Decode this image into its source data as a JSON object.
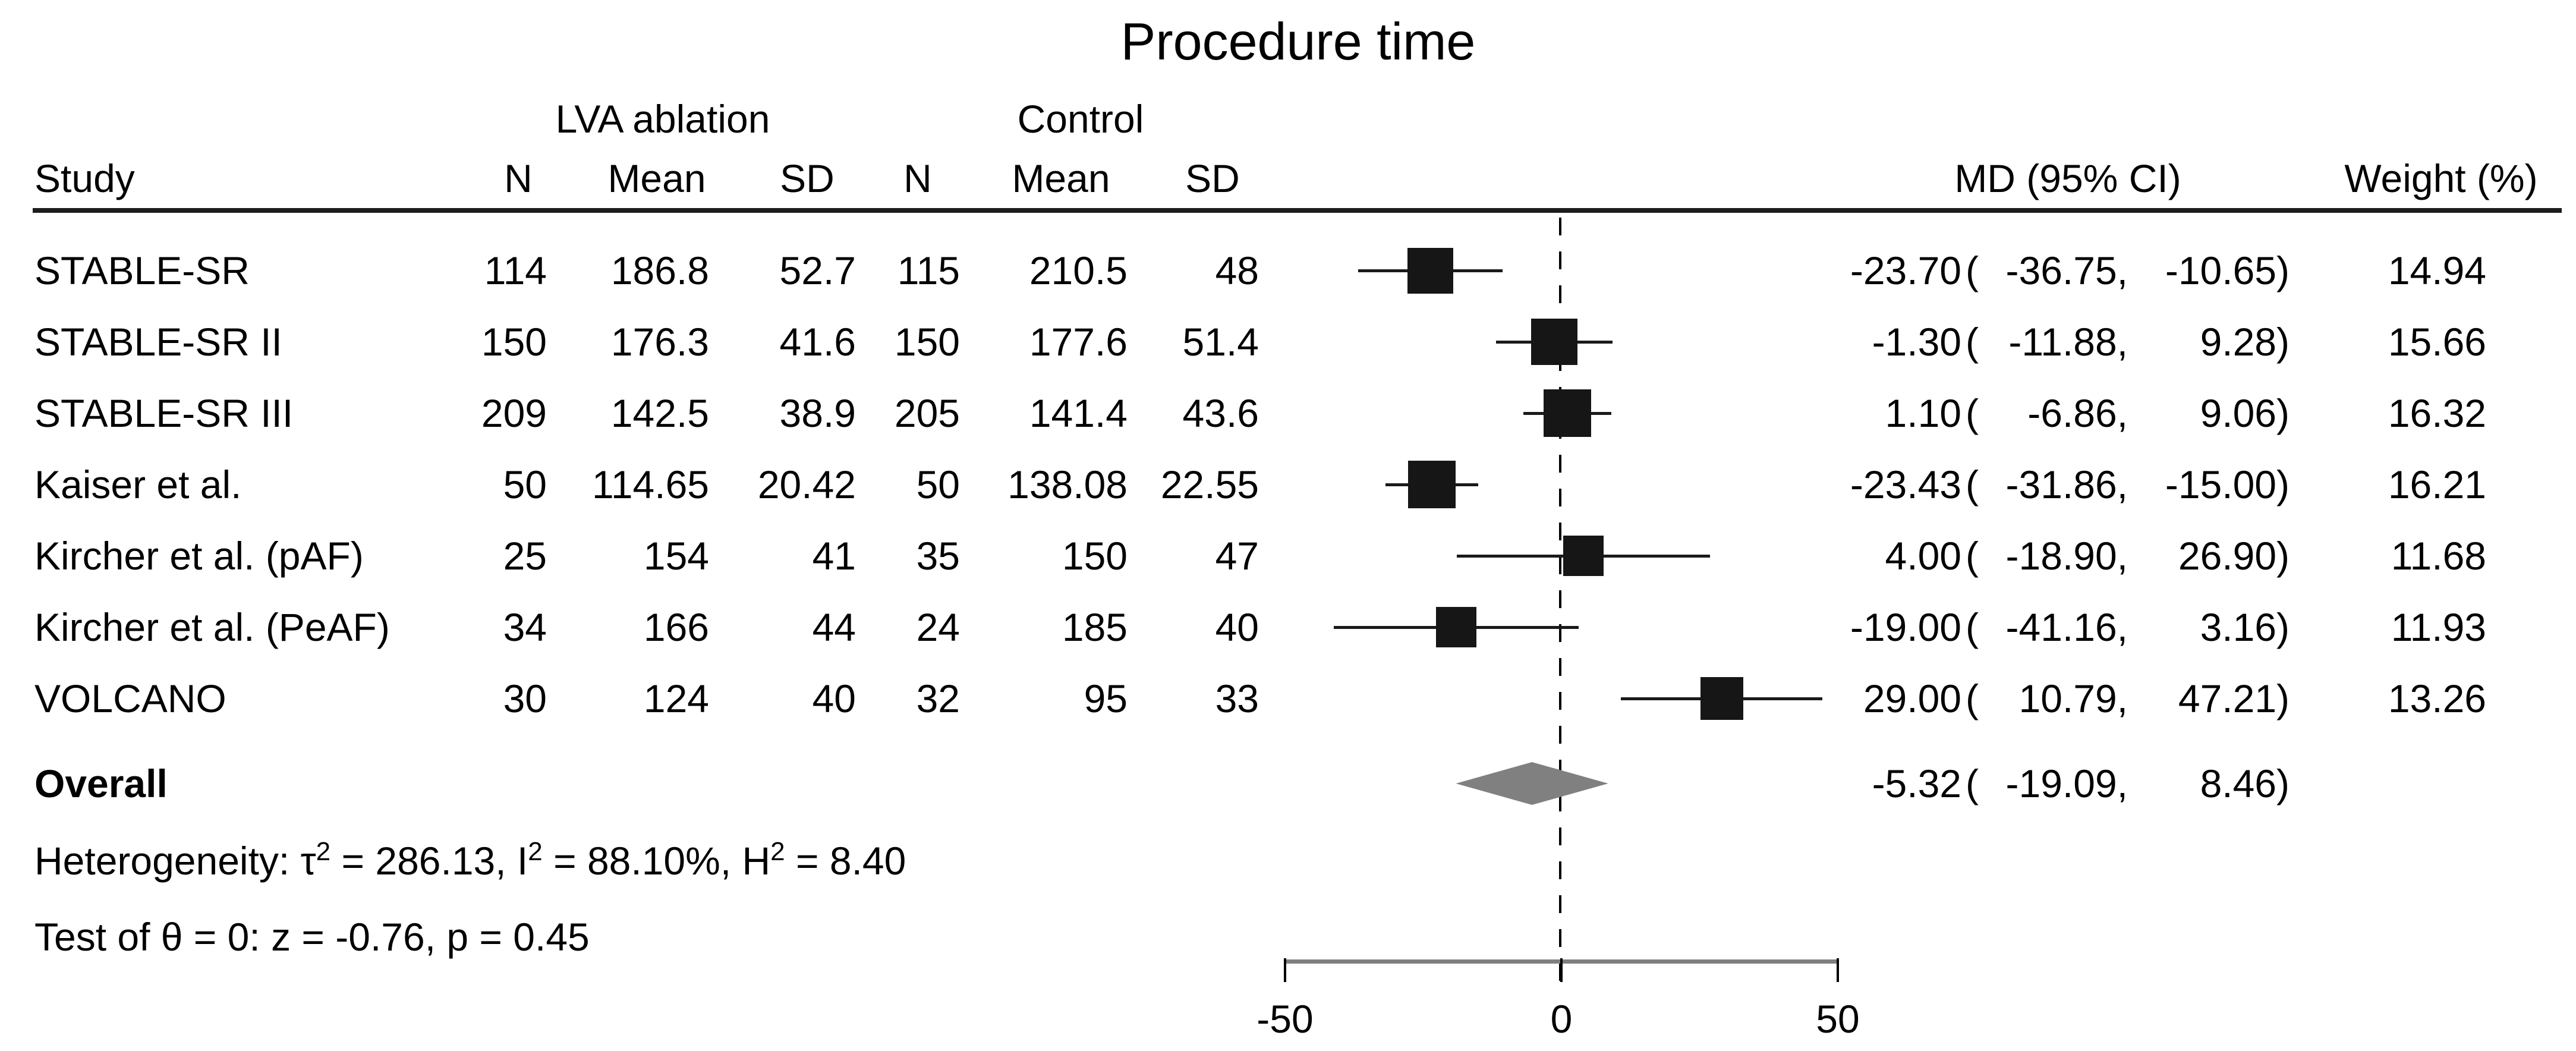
{
  "title": "Procedure time",
  "headers": {
    "study": "Study",
    "group1": "LVA ablation",
    "group2": "Control",
    "n": "N",
    "mean": "Mean",
    "sd": "SD",
    "md_ci": "MD (95% CI)",
    "weight": "Weight (%)"
  },
  "rows": [
    {
      "study": "STABLE-SR",
      "n1": "114",
      "mean1": "186.8",
      "sd1": "52.7",
      "n2": "115",
      "mean2": "210.5",
      "sd2": "48",
      "md": "-23.70",
      "lo": "-36.75",
      "hi": "-10.65",
      "weight": "14.94"
    },
    {
      "study": "STABLE-SR II",
      "n1": "150",
      "mean1": "176.3",
      "sd1": "41.6",
      "n2": "150",
      "mean2": "177.6",
      "sd2": "51.4",
      "md": "-1.30",
      "lo": "-11.88",
      "hi": "9.28",
      "weight": "15.66"
    },
    {
      "study": "STABLE-SR III",
      "n1": "209",
      "mean1": "142.5",
      "sd1": "38.9",
      "n2": "205",
      "mean2": "141.4",
      "sd2": "43.6",
      "md": "1.10",
      "lo": "-6.86",
      "hi": "9.06",
      "weight": "16.32"
    },
    {
      "study": "Kaiser et al.",
      "n1": "50",
      "mean1": "114.65",
      "sd1": "20.42",
      "n2": "50",
      "mean2": "138.08",
      "sd2": "22.55",
      "md": "-23.43",
      "lo": "-31.86",
      "hi": "-15.00",
      "weight": "16.21"
    },
    {
      "study": "Kircher et al. (pAF)",
      "n1": "25",
      "mean1": "154",
      "sd1": "41",
      "n2": "35",
      "mean2": "150",
      "sd2": "47",
      "md": "4.00",
      "lo": "-18.90",
      "hi": "26.90",
      "weight": "11.68"
    },
    {
      "study": "Kircher et al. (PeAF)",
      "n1": "34",
      "mean1": "166",
      "sd1": "44",
      "n2": "24",
      "mean2": "185",
      "sd2": "40",
      "md": "-19.00",
      "lo": "-41.16",
      "hi": "3.16",
      "weight": "11.93"
    },
    {
      "study": "VOLCANO",
      "n1": "30",
      "mean1": "124",
      "sd1": "40",
      "n2": "32",
      "mean2": "95",
      "sd2": "33",
      "md": "29.00",
      "lo": "10.79",
      "hi": "47.21",
      "weight": "13.26"
    }
  ],
  "overall": {
    "label": "Overall",
    "md": "-5.32",
    "lo": "-19.09",
    "hi": "8.46"
  },
  "footer": {
    "heterogeneity_parts": [
      {
        "t": "Heterogeneity: τ",
        "sup": false
      },
      {
        "t": "2",
        "sup": true
      },
      {
        "t": " = 286.13, I",
        "sup": false
      },
      {
        "t": "2",
        "sup": true
      },
      {
        "t": " = 88.10%, H",
        "sup": false
      },
      {
        "t": "2",
        "sup": true
      },
      {
        "t": " = 8.40",
        "sup": false
      }
    ],
    "test_line": "Test of θ = 0: z = -0.76, p = 0.45"
  },
  "axis": {
    "tick_labels": [
      "-50",
      "0",
      "50"
    ],
    "tick_values": [
      -50,
      0,
      50
    ]
  },
  "colors": {
    "marker": "#161616",
    "diamond": "#808080",
    "axis_line": "#7f7f7f",
    "text": "#000000"
  },
  "chart_data": {
    "type": "scatter",
    "subtype": "forest-plot",
    "title": "Procedure time",
    "effect_measure": "MD (95% CI)",
    "zero_line": 0,
    "x_ticks": [
      -50,
      0,
      50
    ],
    "xlim": [
      -55,
      55
    ],
    "series": [
      {
        "name": "STABLE-SR",
        "n1": 114,
        "mean1": 186.8,
        "sd1": 52.7,
        "n2": 115,
        "mean2": 210.5,
        "sd2": 48,
        "md": -23.7,
        "ci": [
          -36.75,
          -10.65
        ],
        "weight_pct": 14.94
      },
      {
        "name": "STABLE-SR II",
        "n1": 150,
        "mean1": 176.3,
        "sd1": 41.6,
        "n2": 150,
        "mean2": 177.6,
        "sd2": 51.4,
        "md": -1.3,
        "ci": [
          -11.88,
          9.28
        ],
        "weight_pct": 15.66
      },
      {
        "name": "STABLE-SR III",
        "n1": 209,
        "mean1": 142.5,
        "sd1": 38.9,
        "n2": 205,
        "mean2": 141.4,
        "sd2": 43.6,
        "md": 1.1,
        "ci": [
          -6.86,
          9.06
        ],
        "weight_pct": 16.32
      },
      {
        "name": "Kaiser et al.",
        "n1": 50,
        "mean1": 114.65,
        "sd1": 20.42,
        "n2": 50,
        "mean2": 138.08,
        "sd2": 22.55,
        "md": -23.43,
        "ci": [
          -31.86,
          -15.0
        ],
        "weight_pct": 16.21
      },
      {
        "name": "Kircher et al. (pAF)",
        "n1": 25,
        "mean1": 154,
        "sd1": 41,
        "n2": 35,
        "mean2": 150,
        "sd2": 47,
        "md": 4.0,
        "ci": [
          -18.9,
          26.9
        ],
        "weight_pct": 11.68
      },
      {
        "name": "Kircher et al. (PeAF)",
        "n1": 34,
        "mean1": 166,
        "sd1": 44,
        "n2": 24,
        "mean2": 185,
        "sd2": 40,
        "md": -19.0,
        "ci": [
          -41.16,
          3.16
        ],
        "weight_pct": 11.93
      },
      {
        "name": "VOLCANO",
        "n1": 30,
        "mean1": 124,
        "sd1": 40,
        "n2": 32,
        "mean2": 95,
        "sd2": 33,
        "md": 29.0,
        "ci": [
          10.79,
          47.21
        ],
        "weight_pct": 13.26
      }
    ],
    "overall": {
      "md": -5.32,
      "ci": [
        -19.09,
        8.46
      ]
    },
    "heterogeneity": {
      "tau2": 286.13,
      "I2_pct": 88.1,
      "H2": 8.4
    },
    "test_of_theta": {
      "z": -0.76,
      "p": 0.45
    }
  }
}
